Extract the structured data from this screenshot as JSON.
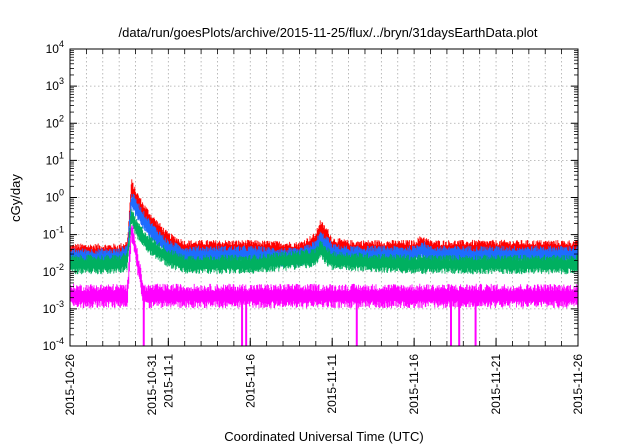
{
  "chart_data": {
    "type": "line",
    "title": "/data/run/goesPlots/archive/2015-11-25/flux/../bryn/31daysEarthData.plot",
    "xlabel": "Coordinated Universal Time (UTC)",
    "ylabel": "cGy/day",
    "y_scale": "log",
    "ylim": [
      0.0001,
      10000
    ],
    "xlim": [
      "2015-10-26",
      "2015-11-26"
    ],
    "grid": true,
    "x_ticks": [
      "2015-10-26",
      "2015-10-31",
      "2015-11-1",
      "2015-11-6",
      "2015-11-11",
      "2015-11-16",
      "2015-11-21",
      "2015-11-26"
    ],
    "y_ticks": [
      {
        "value": 0.0001,
        "base": "10",
        "exp": "-4"
      },
      {
        "value": 0.001,
        "base": "10",
        "exp": "-3"
      },
      {
        "value": 0.01,
        "base": "10",
        "exp": "-2"
      },
      {
        "value": 0.1,
        "base": "10",
        "exp": "-1"
      },
      {
        "value": 1,
        "base": "10",
        "exp": "0"
      },
      {
        "value": 10,
        "base": "10",
        "exp": "1"
      },
      {
        "value": 100,
        "base": "10",
        "exp": "2"
      },
      {
        "value": 1000,
        "base": "10",
        "exp": "3"
      },
      {
        "value": 10000,
        "base": "10",
        "exp": "4"
      }
    ],
    "series": [
      {
        "color": "#ff0000",
        "values": [
          [
            "2015-10-26",
            0.04
          ],
          [
            "2015-10-29",
            0.04
          ],
          [
            "2015-10-29T12:00",
            0.05
          ],
          [
            "2015-10-29T18:00",
            2.3
          ],
          [
            "2015-10-30",
            1.2
          ],
          [
            "2015-10-30T12:00",
            0.5
          ],
          [
            "2015-10-31",
            0.25
          ],
          [
            "2015-11-1",
            0.08
          ],
          [
            "2015-11-2",
            0.05
          ],
          [
            "2015-11-6",
            0.05
          ],
          [
            "2015-11-9",
            0.045
          ],
          [
            "2015-11-10",
            0.08
          ],
          [
            "2015-11-10T06:00",
            0.18
          ],
          [
            "2015-11-10T18:00",
            0.1
          ],
          [
            "2015-11-11",
            0.06
          ],
          [
            "2015-11-12",
            0.05
          ],
          [
            "2015-11-16",
            0.05
          ],
          [
            "2015-11-16T12:00",
            0.07
          ],
          [
            "2015-11-17",
            0.05
          ],
          [
            "2015-11-21",
            0.05
          ],
          [
            "2015-11-26",
            0.05
          ]
        ]
      },
      {
        "color": "#1e6cff",
        "values": [
          [
            "2015-10-26",
            0.03
          ],
          [
            "2015-10-29",
            0.03
          ],
          [
            "2015-10-29T12:00",
            0.04
          ],
          [
            "2015-10-29T18:00",
            1.1
          ],
          [
            "2015-10-30",
            0.7
          ],
          [
            "2015-10-30T12:00",
            0.3
          ],
          [
            "2015-10-31",
            0.15
          ],
          [
            "2015-11-1",
            0.05
          ],
          [
            "2015-11-2",
            0.035
          ],
          [
            "2015-11-6",
            0.035
          ],
          [
            "2015-11-9",
            0.03
          ],
          [
            "2015-11-10",
            0.05
          ],
          [
            "2015-11-10T06:00",
            0.09
          ],
          [
            "2015-11-10T18:00",
            0.06
          ],
          [
            "2015-11-11",
            0.04
          ],
          [
            "2015-11-12",
            0.035
          ],
          [
            "2015-11-16",
            0.035
          ],
          [
            "2015-11-16T12:00",
            0.05
          ],
          [
            "2015-11-17",
            0.035
          ],
          [
            "2015-11-21",
            0.035
          ],
          [
            "2015-11-26",
            0.035
          ]
        ]
      },
      {
        "color": "#00b060",
        "values": [
          [
            "2015-10-26",
            0.02
          ],
          [
            "2015-10-29",
            0.02
          ],
          [
            "2015-10-29T12:00",
            0.025
          ],
          [
            "2015-10-29T18:00",
            0.4
          ],
          [
            "2015-10-30",
            0.2
          ],
          [
            "2015-10-30T12:00",
            0.1
          ],
          [
            "2015-10-31",
            0.06
          ],
          [
            "2015-11-1",
            0.03
          ],
          [
            "2015-11-2",
            0.02
          ],
          [
            "2015-11-6",
            0.02
          ],
          [
            "2015-11-10",
            0.03
          ],
          [
            "2015-11-10T06:00",
            0.05
          ],
          [
            "2015-11-11",
            0.025
          ],
          [
            "2015-11-16",
            0.02
          ],
          [
            "2015-11-21",
            0.02
          ],
          [
            "2015-11-26",
            0.02
          ]
        ]
      },
      {
        "color": "#ff00ff",
        "values": [
          [
            "2015-10-26",
            0.003
          ],
          [
            "2015-10-29",
            0.003
          ],
          [
            "2015-10-29T12:00",
            0.003
          ],
          [
            "2015-10-29T18:00",
            0.2
          ],
          [
            "2015-10-30",
            0.05
          ],
          [
            "2015-10-30T12:00",
            0.003
          ],
          [
            "2015-11-6",
            0.003
          ],
          [
            "2015-11-26",
            0.003
          ]
        ]
      }
    ],
    "dropouts": [
      "2015-10-30T12:00",
      "2015-11-5T12:00",
      "2015-11-5T18:00",
      "2015-11-12T12:00",
      "2015-11-18T06:00",
      "2015-11-18T18:00",
      "2015-11-19T18:00"
    ]
  }
}
